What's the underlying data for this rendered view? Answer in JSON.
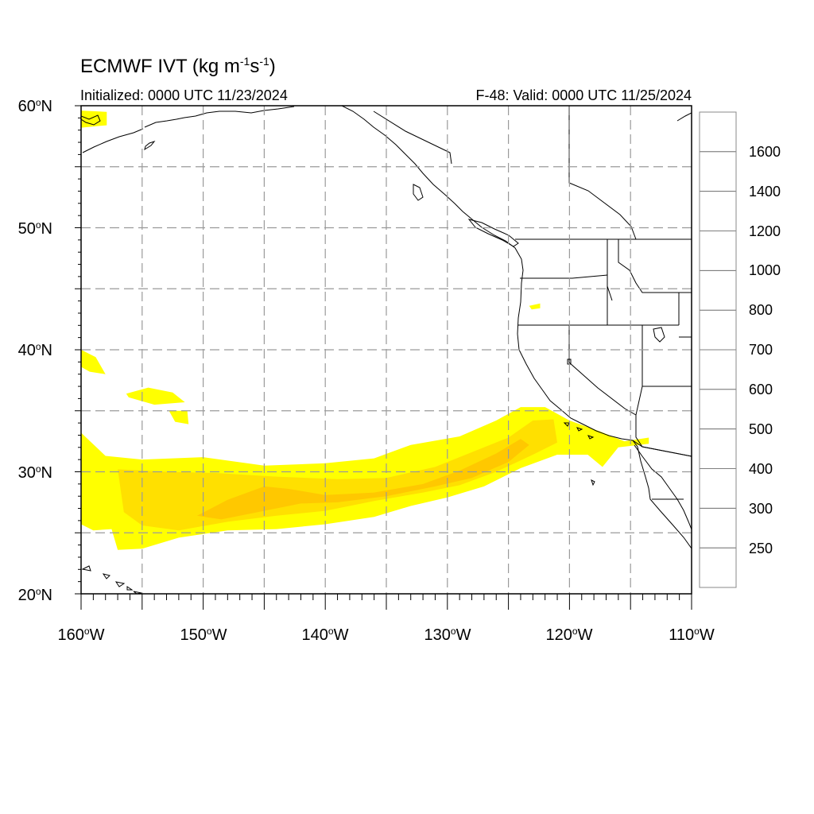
{
  "title": {
    "text": "ECMWF IVT (kg m",
    "sup1": "-1",
    "mid": "s",
    "sup2": "-1",
    "end": ")"
  },
  "initialized": "Initialized: 0000 UTC 11/23/2024",
  "valid": "F-48: Valid: 0000 UTC 11/25/2024",
  "lat_labels": [
    "60",
    "50",
    "40",
    "30",
    "20"
  ],
  "lat_suffix": "N",
  "lon_labels": [
    "160",
    "150",
    "140",
    "130",
    "120",
    "110"
  ],
  "lon_suffix": "W",
  "deg_symbol": "o",
  "colorbar": {
    "labels": [
      "1600",
      "1400",
      "1200",
      "1000",
      "800",
      "700",
      "600",
      "500",
      "400",
      "300",
      "250"
    ],
    "colors": [
      "#5b0098",
      "#8f006b",
      "#c10044",
      "#ec0014",
      "#ff2a00",
      "#ff5a00",
      "#ff8800",
      "#ffab00",
      "#ffc800",
      "#ffe000",
      "#ffff00",
      "#ffffff"
    ]
  },
  "chart_data": {
    "type": "heatmap",
    "variable": "ECMWF IVT (kg m-1s-1)",
    "projection": "lat-lon",
    "lon_range": [
      -160,
      -110
    ],
    "lat_range": [
      20,
      60
    ],
    "grid": true,
    "levels": [
      250,
      300,
      400,
      500,
      600,
      700,
      800,
      1000,
      1200,
      1400,
      1600
    ],
    "plumes": [
      {
        "level": 250,
        "polygon": [
          [
            -160,
            33.2
          ],
          [
            -158,
            31.3
          ],
          [
            -155,
            31
          ],
          [
            -150,
            31.2
          ],
          [
            -145,
            30.5
          ],
          [
            -140,
            30.7
          ],
          [
            -136,
            31.1
          ],
          [
            -133,
            32.2
          ],
          [
            -129,
            32.9
          ],
          [
            -126,
            34.2
          ],
          [
            -124,
            35.3
          ],
          [
            -122,
            35.3
          ],
          [
            -120,
            34.2
          ],
          [
            -117.5,
            33.3
          ],
          [
            -115.5,
            32.5
          ],
          [
            -113.5,
            32.8
          ],
          [
            -113.5,
            32.3
          ],
          [
            -116,
            32
          ],
          [
            -117.3,
            30.4
          ],
          [
            -118.5,
            31.4
          ],
          [
            -121,
            31.4
          ],
          [
            -124,
            30.3
          ],
          [
            -127,
            28.8
          ],
          [
            -130,
            27.9
          ],
          [
            -133,
            27.2
          ],
          [
            -136,
            26.3
          ],
          [
            -140,
            25.7
          ],
          [
            -144,
            25.3
          ],
          [
            -148,
            25.2
          ],
          [
            -152,
            24.6
          ],
          [
            -155,
            23.7
          ],
          [
            -157,
            23.6
          ],
          [
            -157.5,
            25.3
          ],
          [
            -159,
            25.2
          ],
          [
            -160,
            25.7
          ]
        ]
      },
      {
        "level": 300,
        "polygon": [
          [
            -157,
            30.2
          ],
          [
            -153,
            30
          ],
          [
            -149,
            29.9
          ],
          [
            -144,
            29.6
          ],
          [
            -139,
            29.4
          ],
          [
            -135,
            29.5
          ],
          [
            -131,
            30.4
          ],
          [
            -128,
            31.6
          ],
          [
            -125,
            32.8
          ],
          [
            -123,
            34.2
          ],
          [
            -121.3,
            34.3
          ],
          [
            -121,
            32.4
          ],
          [
            -123,
            31.4
          ],
          [
            -126,
            30
          ],
          [
            -129,
            28.9
          ],
          [
            -132,
            28.3
          ],
          [
            -136,
            27.6
          ],
          [
            -140,
            26.8
          ],
          [
            -144,
            26.4
          ],
          [
            -148,
            25.9
          ],
          [
            -152,
            25.2
          ],
          [
            -155,
            25.6
          ],
          [
            -156.5,
            26.7
          ]
        ]
      },
      {
        "level": 400,
        "polygon": [
          [
            -148,
            27.7
          ],
          [
            -145,
            28.8
          ],
          [
            -143,
            28.6
          ],
          [
            -140,
            28.1
          ],
          [
            -136,
            28.3
          ],
          [
            -132,
            29
          ],
          [
            -129,
            30.1
          ],
          [
            -126,
            31.5
          ],
          [
            -124,
            32.7
          ],
          [
            -123.3,
            32.2
          ],
          [
            -125,
            30.8
          ],
          [
            -128,
            29.5
          ],
          [
            -131,
            28.8
          ],
          [
            -135,
            28
          ],
          [
            -139,
            27.5
          ],
          [
            -142,
            27.4
          ],
          [
            -145,
            26.8
          ],
          [
            -148.5,
            26.1
          ],
          [
            -150.5,
            26.4
          ]
        ]
      }
    ],
    "minor_patches": [
      {
        "level": 250,
        "polygon": [
          [
            -160,
            40
          ],
          [
            -158.8,
            39.4
          ],
          [
            -158,
            38
          ],
          [
            -159.3,
            38.2
          ],
          [
            -160,
            38.6
          ]
        ]
      },
      {
        "level": 250,
        "polygon": [
          [
            -160,
            59.6
          ],
          [
            -157.9,
            59.5
          ],
          [
            -157.9,
            58.4
          ],
          [
            -160,
            58.2
          ]
        ]
      },
      {
        "level": 250,
        "polygon": [
          [
            -156.3,
            36.4
          ],
          [
            -154.5,
            36.9
          ],
          [
            -152.5,
            36.5
          ],
          [
            -151.5,
            35.7
          ],
          [
            -154,
            35.5
          ],
          [
            -156.1,
            36.1
          ]
        ]
      },
      {
        "level": 250,
        "polygon": [
          [
            -152.8,
            35
          ],
          [
            -151.3,
            35
          ],
          [
            -151.2,
            33.9
          ],
          [
            -152.3,
            34.1
          ]
        ]
      },
      {
        "level": 250,
        "polygon": [
          [
            -123.3,
            43.6
          ],
          [
            -122.4,
            43.8
          ],
          [
            -122.4,
            43.4
          ],
          [
            -123.1,
            43.3
          ]
        ]
      }
    ]
  }
}
